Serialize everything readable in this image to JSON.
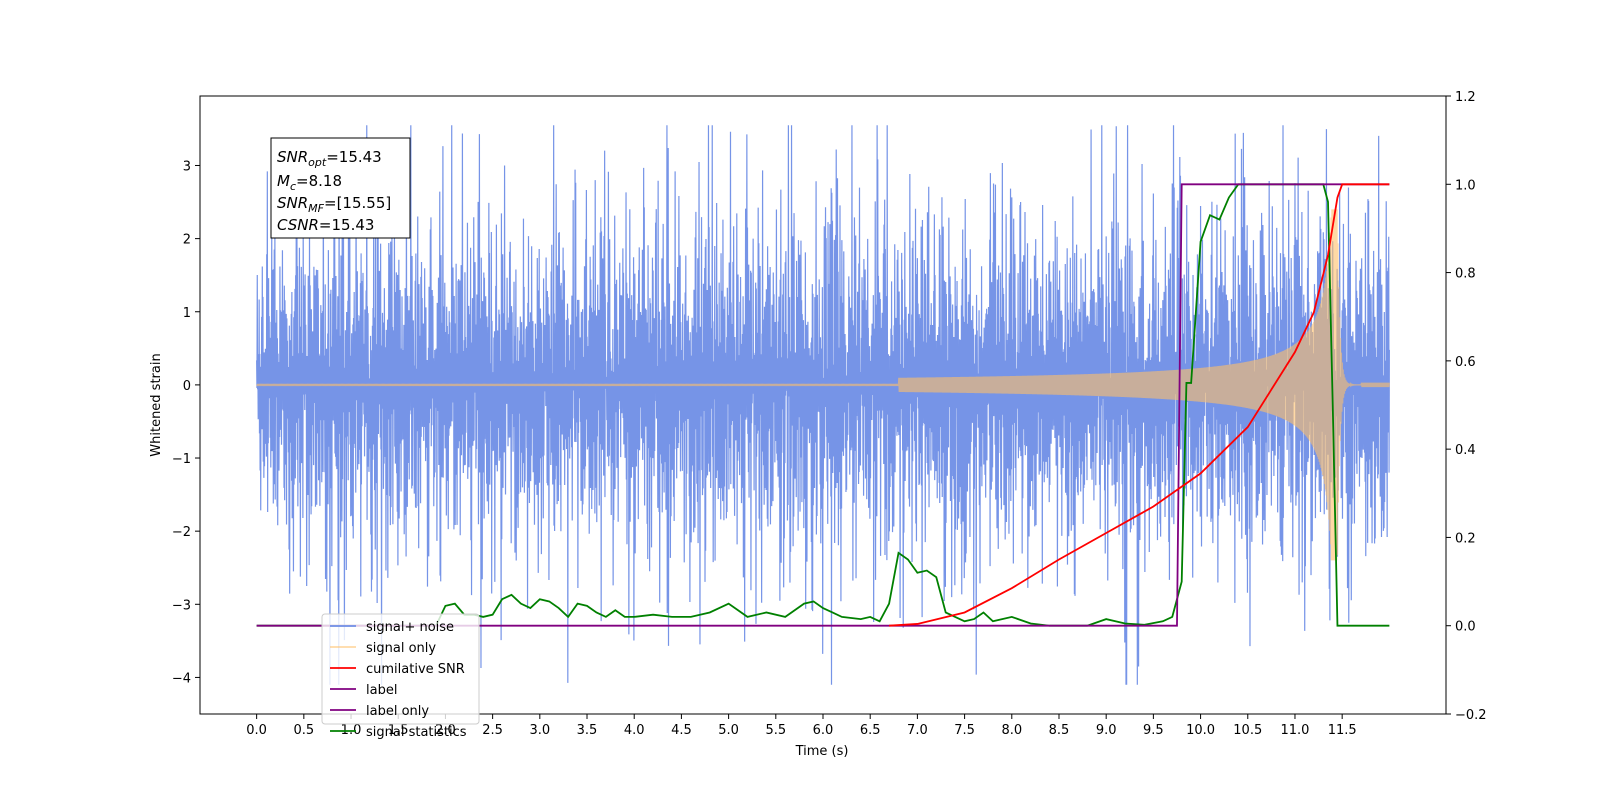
{
  "chart_data": {
    "type": "line",
    "xlabel": "Time (s)",
    "ylabel_left": "Whitened strain",
    "ylabel_right": "",
    "xlim": [
      -0.6,
      12.6
    ],
    "ylim_left": [
      -4.5,
      3.95
    ],
    "ylim_right": [
      -0.2,
      1.2
    ],
    "x_ticks": [
      "0.0",
      "0.5",
      "1.0",
      "1.5",
      "2.0",
      "2.5",
      "3.0",
      "3.5",
      "4.0",
      "4.5",
      "5.0",
      "5.5",
      "6.0",
      "6.5",
      "7.0",
      "7.5",
      "8.0",
      "8.5",
      "9.0",
      "9.5",
      "10.0",
      "10.5",
      "11.0",
      "11.5"
    ],
    "y_left_ticks": [
      "3",
      "2",
      "1",
      "0",
      "−1",
      "−2",
      "−3",
      "−4"
    ],
    "y_right_ticks": [
      "1.2",
      "1.0",
      "0.8",
      "0.6",
      "0.4",
      "0.2",
      "0.0",
      "−0.2"
    ],
    "grid": false,
    "legend_position": "lower-left",
    "annotation": {
      "snr_opt": {
        "base": "SNR",
        "sub": "opt",
        "value": "=15.43"
      },
      "mc": {
        "base": "M",
        "sub": "c",
        "value": "=8.18"
      },
      "snr_mf": {
        "base": "SNR",
        "sub": "MF",
        "value": "=[15.55]"
      },
      "csnr": {
        "base": "CSNR",
        "sub": "",
        "value": "=15.43"
      }
    },
    "series": [
      {
        "name": "signal+ noise",
        "axis": "left",
        "color": "#6f8ee6",
        "description_values": {
          "x_range": [
            0.0,
            12.0
          ],
          "noise_sigma": 1.0,
          "y_min": -4.1,
          "y_max": 3.55
        }
      },
      {
        "name": "signal only",
        "axis": "left",
        "color": "#ffbf69",
        "description_values": {
          "x_range": [
            0.0,
            12.0
          ],
          "chirp_start": 7.0,
          "merger_time": 11.45,
          "peak_amplitude": 2.4
        }
      },
      {
        "name": "cumilative SNR",
        "axis": "right",
        "color": "#ff0000",
        "x": [
          6.7,
          7.0,
          7.5,
          8.0,
          8.5,
          9.0,
          9.5,
          10.0,
          10.5,
          11.0,
          11.2,
          11.35,
          11.45,
          11.5,
          12.0
        ],
        "y": [
          0.0,
          0.004,
          0.03,
          0.085,
          0.15,
          0.21,
          0.27,
          0.345,
          0.45,
          0.62,
          0.71,
          0.84,
          0.97,
          1.0,
          1.0
        ]
      },
      {
        "name": "label",
        "axis": "right",
        "color": "#800080",
        "x": [
          0.0,
          9.75,
          9.8,
          11.42,
          11.45,
          12.0
        ],
        "y": [
          0.0,
          0.0,
          1.0,
          1.0,
          1.0,
          1.0
        ]
      },
      {
        "name": "label only",
        "axis": "right",
        "color": "#800080",
        "hidden_in_plot": true,
        "x": [],
        "y": []
      },
      {
        "name": "signal statistics",
        "axis": "right",
        "color": "#008000",
        "x": [
          0.0,
          1.6,
          1.9,
          2.0,
          2.1,
          2.2,
          2.3,
          2.4,
          2.5,
          2.6,
          2.7,
          2.8,
          2.9,
          3.0,
          3.1,
          3.2,
          3.3,
          3.4,
          3.5,
          3.6,
          3.7,
          3.8,
          3.9,
          4.0,
          4.2,
          4.4,
          4.6,
          4.8,
          5.0,
          5.1,
          5.2,
          5.4,
          5.6,
          5.8,
          5.9,
          6.0,
          6.1,
          6.2,
          6.4,
          6.5,
          6.6,
          6.7,
          6.8,
          6.9,
          7.0,
          7.1,
          7.2,
          7.3,
          7.4,
          7.5,
          7.6,
          7.7,
          7.8,
          8.0,
          8.2,
          8.4,
          8.6,
          8.8,
          9.0,
          9.2,
          9.4,
          9.6,
          9.7,
          9.8,
          9.85,
          9.9,
          10.0,
          10.1,
          10.2,
          10.3,
          10.4,
          10.5,
          10.6,
          10.8,
          11.0,
          11.2,
          11.3,
          11.35,
          11.4,
          11.45,
          11.5,
          12.0
        ],
        "y": [
          0.0,
          0.0,
          0.0,
          0.045,
          0.05,
          0.025,
          0.025,
          0.02,
          0.025,
          0.06,
          0.07,
          0.05,
          0.04,
          0.06,
          0.055,
          0.04,
          0.02,
          0.05,
          0.045,
          0.03,
          0.02,
          0.035,
          0.02,
          0.02,
          0.025,
          0.02,
          0.02,
          0.03,
          0.05,
          0.035,
          0.02,
          0.03,
          0.02,
          0.05,
          0.055,
          0.04,
          0.03,
          0.02,
          0.015,
          0.02,
          0.01,
          0.05,
          0.165,
          0.15,
          0.12,
          0.125,
          0.11,
          0.03,
          0.02,
          0.01,
          0.015,
          0.03,
          0.01,
          0.02,
          0.005,
          0.0,
          0.0,
          0.0,
          0.015,
          0.005,
          0.002,
          0.01,
          0.02,
          0.1,
          0.55,
          0.55,
          0.87,
          0.93,
          0.92,
          0.97,
          1.0,
          1.0,
          1.0,
          1.0,
          1.0,
          1.0,
          1.0,
          0.96,
          0.5,
          0.0,
          0.0,
          0.0
        ]
      }
    ]
  }
}
